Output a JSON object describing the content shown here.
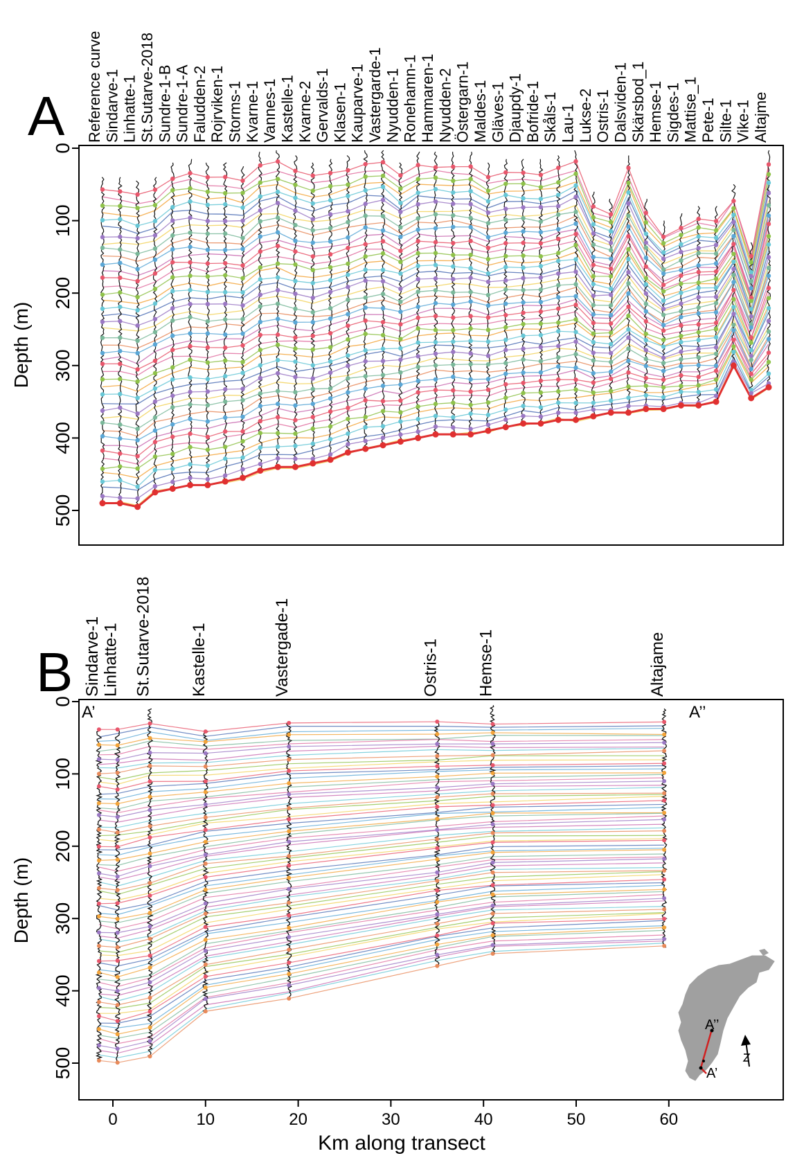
{
  "chart_data": [
    {
      "type": "line",
      "panel_label": "A",
      "ylabel": "Depth (m)",
      "ylim": [
        0,
        500
      ],
      "y_reversed": true,
      "y_ticks": [
        0,
        100,
        200,
        300,
        400,
        500
      ],
      "wells": [
        "Reference curve",
        "Sindarve-1",
        "Linhatte-1",
        "St.Sutarve-2018",
        "Sundre-1-B",
        "Sundre-1-A",
        "Faludden-2",
        "Rojrviken-1",
        "Storms-1",
        "Kvarne-1",
        "Vannes-1",
        "Kastelle-1",
        "Kvarne-2",
        "Gervalds-1",
        "Klasen-1",
        "Kauparve-1",
        "Vastergarde-1",
        "Nyudden-1",
        "Ronehamn-1",
        "Hammaren-1",
        "Nyudden-2",
        "Östergarn-1",
        "Maldes-1",
        "Gläves-1",
        "Djaupdy-1",
        "Bofride-1",
        "Skåls-1",
        "Lau-1",
        "Lukse-2",
        "Ostris-1",
        "Dalsviden-1",
        "Skärsbod_1",
        "Hemse-1",
        "Sigdes-1",
        "Mattise_1",
        "Pete-1",
        "Silte-1",
        "Vike-1",
        "Altajme"
      ],
      "well_top_depth": [
        60,
        60,
        65,
        60,
        40,
        35,
        40,
        40,
        45,
        25,
        5,
        30,
        40,
        35,
        30,
        5,
        20,
        40,
        25,
        25,
        25,
        25,
        40,
        35,
        35,
        35,
        30,
        5,
        80,
        90,
        30,
        90,
        120,
        110,
        100,
        100,
        70,
        150,
        20
      ],
      "well_base_depth": [
        490,
        490,
        495,
        475,
        470,
        465,
        465,
        460,
        455,
        445,
        440,
        440,
        435,
        430,
        420,
        415,
        410,
        405,
        400,
        395,
        395,
        395,
        390,
        385,
        380,
        380,
        375,
        375,
        370,
        365,
        365,
        360,
        360,
        355,
        355,
        350,
        300,
        345,
        330
      ]
    },
    {
      "type": "line",
      "panel_label": "B",
      "xlabel": "Km along transect",
      "ylabel": "Depth (m)",
      "xlim": [
        -3,
        68
      ],
      "ylim": [
        0,
        520
      ],
      "y_reversed": true,
      "x_ticks": [
        0,
        10,
        20,
        30,
        40,
        50,
        60
      ],
      "y_ticks": [
        0,
        100,
        200,
        300,
        400,
        500
      ],
      "wells": [
        {
          "name": "Sindarve-1",
          "km": -1.5,
          "top": 40,
          "base": 495
        },
        {
          "name": "Linhatte-1",
          "km": 0.5,
          "top": 40,
          "base": 500
        },
        {
          "name": "St.Sutarve-2018",
          "km": 4,
          "top": 10,
          "base": 490
        },
        {
          "name": "Kastelle-1",
          "km": 10,
          "top": 40,
          "base": 430
        },
        {
          "name": "Vastergade-1",
          "km": 19,
          "top": 30,
          "base": 410
        },
        {
          "name": "Ostris-1",
          "km": 35,
          "top": 30,
          "base": 365
        },
        {
          "name": "Hemse-1",
          "km": 41,
          "top": 5,
          "base": 350
        },
        {
          "name": "Altajame",
          "km": 59.5,
          "top": 10,
          "base": 340
        }
      ],
      "annotations": [
        "A’",
        "A’’"
      ],
      "inset_labels": [
        "A’’",
        "A’"
      ]
    }
  ]
}
